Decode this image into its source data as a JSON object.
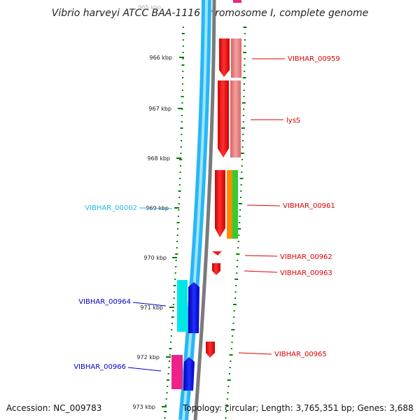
{
  "title": "Vibrio harveyi ATCC BAA-1116 chromosome I, complete genome",
  "top_tick_partial": "965 kbp",
  "ticks": [
    "966 kbp",
    "967 kbp",
    "968 kbp",
    "969 kbp",
    "970 kbp",
    "971 kbp",
    "972 kbp",
    "973 kbp"
  ],
  "genes": {
    "plus": [
      "VIBHAR_00959",
      "lysS",
      "VIBHAR_00961",
      "VIBHAR_00962",
      "VIBHAR_00963",
      "VIBHAR_00965"
    ],
    "minus": [
      "VIBHAR_00964",
      "VIBHAR_00966"
    ],
    "rna": [
      "VIBHAR_00002"
    ]
  },
  "footer": {
    "accession": "Accession: NC_009783",
    "summary": "Topology: circular; Length: 3,765,351 bp; Genes: 3,688"
  },
  "colors": {
    "plus_cds": "#ff0000",
    "plus_cds_light": "#f08080",
    "minus_cds": "#0000ee",
    "minus_label": "#0000cc",
    "plus_label": "#dd0000",
    "rna_label": "#20b8e8",
    "cyan_feature": "#00e5e5",
    "magenta_feature": "#ee2288",
    "orange_feature": "#ff8c00",
    "green_feature": "#33cc33",
    "gc_skew": "#008000",
    "backbone_blue": "#29b6f6",
    "backbone_grey": "#808080"
  }
}
